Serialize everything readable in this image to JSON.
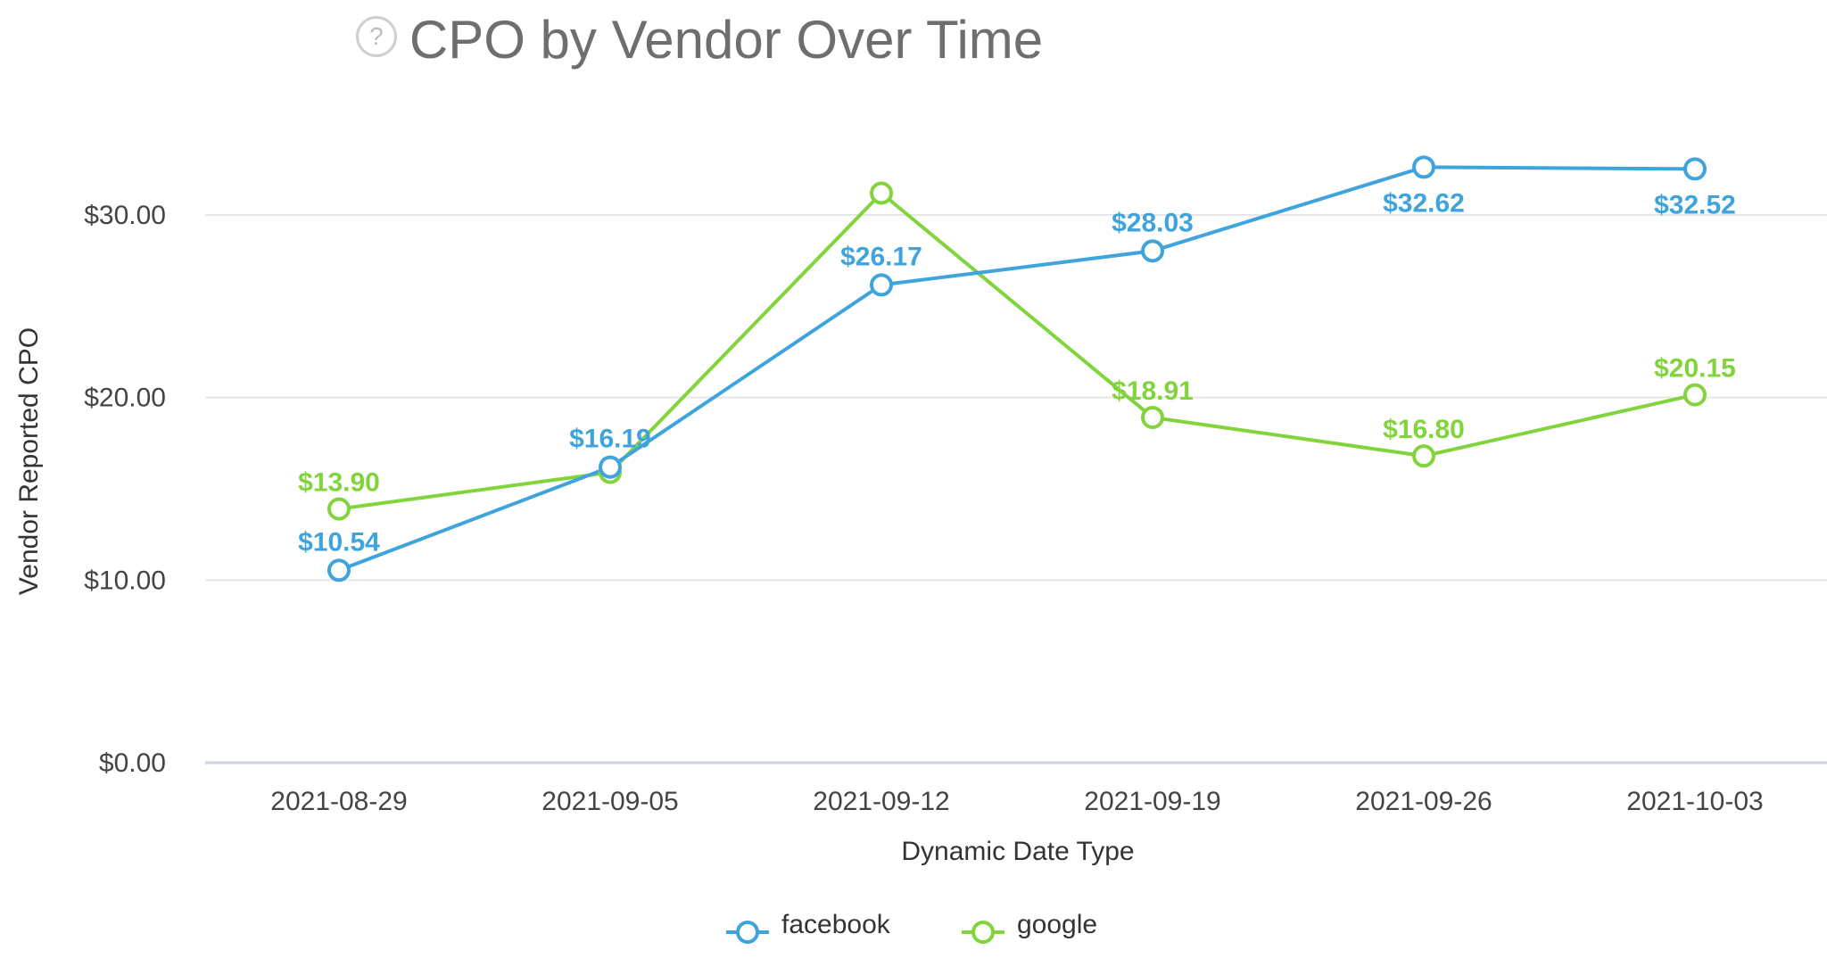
{
  "chart_data": {
    "type": "line",
    "title": "CPO by Vendor Over Time",
    "xlabel": "Dynamic Date Type",
    "ylabel": "Vendor Reported CPO",
    "categories": [
      "2021-08-29",
      "2021-09-05",
      "2021-09-12",
      "2021-09-19",
      "2021-09-26",
      "2021-10-03"
    ],
    "ylim": [
      0,
      35
    ],
    "yticks": [
      0,
      10,
      20,
      30
    ],
    "ytick_labels": [
      "$0.00",
      "$10.00",
      "$20.00",
      "$30.00"
    ],
    "grid": true,
    "legend_position": "bottom",
    "series": [
      {
        "name": "facebook",
        "color": "#3fa3dc",
        "values": [
          10.54,
          16.19,
          26.17,
          28.03,
          32.62,
          32.52
        ],
        "labels": [
          "$10.54",
          "$16.19",
          "$26.17",
          "$28.03",
          "$32.62",
          "$32.52"
        ]
      },
      {
        "name": "google",
        "color": "#82d43c",
        "values": [
          13.9,
          15.9,
          31.2,
          18.91,
          16.8,
          20.15
        ],
        "labels": [
          "$13.90",
          "",
          "",
          "$18.91",
          "$16.80",
          "$20.15"
        ]
      }
    ]
  },
  "header": {
    "help_icon": "question-circle-icon"
  }
}
